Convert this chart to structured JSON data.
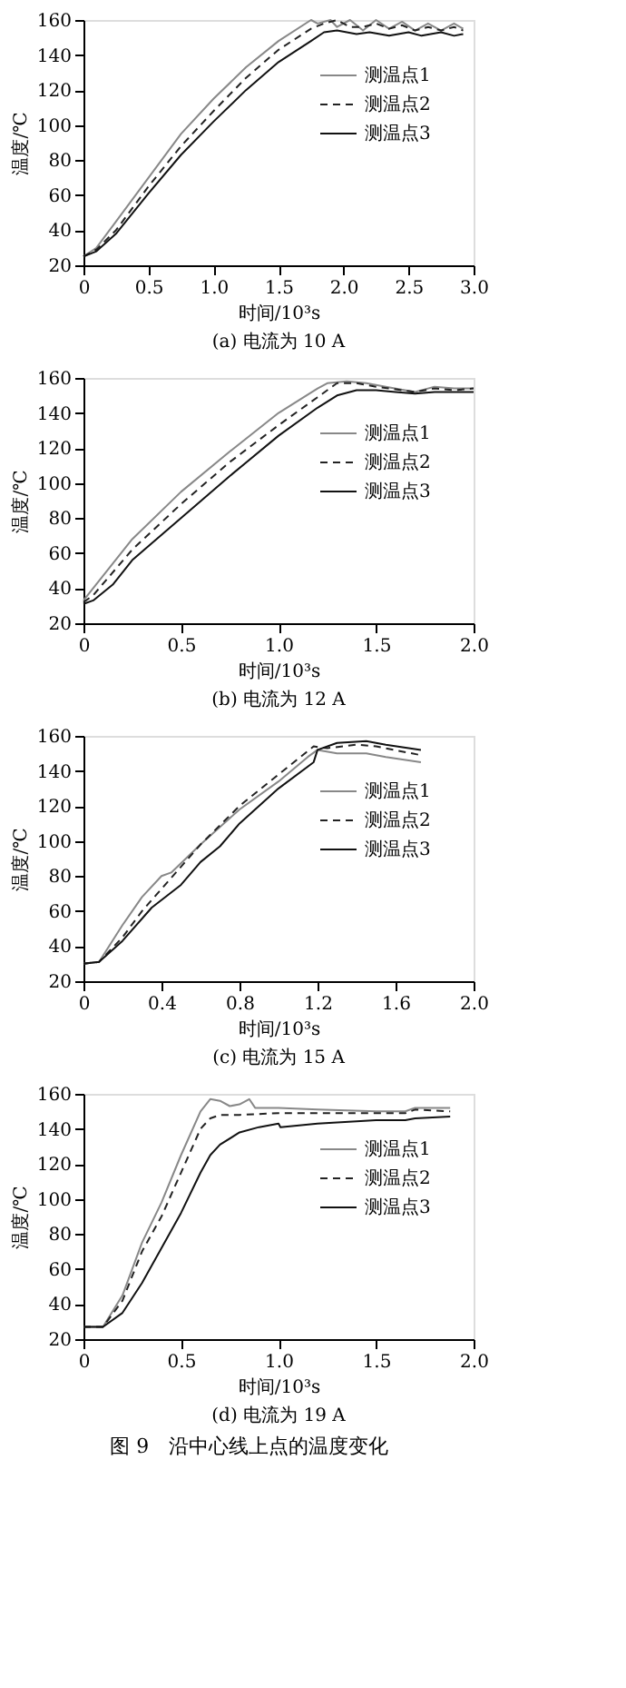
{
  "chart_data": [
    {
      "type": "line",
      "title": "(a) 电流为 10 A",
      "xlabel": "时间/10³s",
      "ylabel": "温度/℃",
      "xlim": [
        0,
        3
      ],
      "xticks": [
        0,
        0.5,
        {
          "value": 1,
          "label": "1.0"
        },
        1.5,
        {
          "value": 2,
          "label": "2.0"
        },
        2.5,
        {
          "value": 3,
          "label": "3.0"
        }
      ],
      "ylim": [
        20,
        160
      ],
      "yticks": [
        20,
        40,
        60,
        80,
        100,
        120,
        140,
        160
      ],
      "grid": false,
      "legend": "top right",
      "series": [
        {
          "name": "测温点1",
          "color": "#888888",
          "line_style": "solid",
          "x": [
            0,
            0.1,
            0.25,
            0.5,
            0.75,
            1.0,
            1.25,
            1.5,
            1.75,
            1.8,
            1.9,
            1.95,
            2.05,
            2.15,
            2.25,
            2.35,
            2.45,
            2.55,
            2.65,
            2.75,
            2.85,
            2.92
          ],
          "values": [
            25,
            30,
            45,
            70,
            95,
            115,
            133,
            148,
            160,
            158,
            160,
            156,
            160,
            154,
            160,
            155,
            159,
            154,
            158,
            154,
            158,
            155
          ]
        },
        {
          "name": "测温点2",
          "color": "#222222",
          "line_style": "dashed",
          "x": [
            0,
            0.1,
            0.25,
            0.5,
            0.75,
            1.0,
            1.25,
            1.5,
            1.75,
            1.85,
            1.95,
            2.05,
            2.15,
            2.25,
            2.35,
            2.45,
            2.55,
            2.65,
            2.75,
            2.85,
            2.92
          ],
          "values": [
            25,
            29,
            40,
            65,
            88,
            108,
            127,
            143,
            155,
            158,
            160,
            156,
            156,
            158,
            155,
            157,
            154,
            156,
            154,
            156,
            154
          ]
        },
        {
          "name": "测温点3",
          "color": "#111111",
          "line_style": "solid",
          "x": [
            0,
            0.1,
            0.25,
            0.5,
            0.75,
            1.0,
            1.25,
            1.5,
            1.75,
            1.85,
            1.95,
            2.1,
            2.2,
            2.35,
            2.5,
            2.6,
            2.75,
            2.85,
            2.92
          ],
          "values": [
            25,
            28,
            38,
            61,
            83,
            102,
            120,
            136,
            148,
            153,
            154,
            152,
            153,
            151,
            153,
            151,
            153,
            151,
            152
          ]
        }
      ]
    },
    {
      "type": "line",
      "title": "(b) 电流为 12 A",
      "xlabel": "时间/10³s",
      "ylabel": "温度/℃",
      "xlim": [
        0,
        2
      ],
      "xticks": [
        0,
        0.5,
        {
          "value": 1,
          "label": "1.0"
        },
        1.5,
        {
          "value": 2,
          "label": "2.0"
        }
      ],
      "ylim": [
        20,
        160
      ],
      "yticks": [
        20,
        40,
        60,
        80,
        100,
        120,
        140,
        160
      ],
      "grid": false,
      "legend": "top right",
      "series": [
        {
          "name": "测温点1",
          "color": "#888888",
          "line_style": "solid",
          "x": [
            0,
            0.05,
            0.25,
            0.5,
            0.75,
            1.0,
            1.2,
            1.25,
            1.35,
            1.45,
            1.55,
            1.7,
            1.8,
            1.9,
            2.0
          ],
          "values": [
            33,
            40,
            68,
            95,
            118,
            140,
            154,
            157,
            158,
            157,
            155,
            152,
            155,
            154,
            154
          ]
        },
        {
          "name": "测温点2",
          "color": "#222222",
          "line_style": "dashed",
          "x": [
            0,
            0.05,
            0.25,
            0.5,
            0.75,
            1.0,
            1.2,
            1.3,
            1.4,
            1.5,
            1.7,
            1.8,
            1.9,
            2.0
          ],
          "values": [
            32,
            36,
            62,
            88,
            112,
            133,
            149,
            157,
            157,
            155,
            152,
            154,
            153,
            154
          ]
        },
        {
          "name": "测温点3",
          "color": "#111111",
          "line_style": "solid",
          "x": [
            0,
            0.05,
            0.15,
            0.25,
            0.5,
            0.75,
            1.0,
            1.2,
            1.3,
            1.4,
            1.5,
            1.6,
            1.7,
            1.8,
            2.0
          ],
          "values": [
            31,
            33,
            42,
            56,
            80,
            104,
            127,
            143,
            150,
            153,
            153,
            152,
            151,
            152,
            152
          ]
        }
      ]
    },
    {
      "type": "line",
      "title": "(c) 电流为 15 A",
      "xlabel": "时间/10³s",
      "ylabel": "温度/℃",
      "xlim": [
        0,
        2
      ],
      "xticks": [
        0,
        0.4,
        0.8,
        1.2,
        1.6,
        {
          "value": 2,
          "label": "2.0"
        }
      ],
      "ylim": [
        20,
        160
      ],
      "yticks": [
        20,
        40,
        60,
        80,
        100,
        120,
        140,
        160
      ],
      "grid": false,
      "legend": "top right",
      "series": [
        {
          "name": "测温点1",
          "color": "#888888",
          "line_style": "solid",
          "x": [
            0,
            0.08,
            0.2,
            0.3,
            0.4,
            0.45,
            0.6,
            0.8,
            1.0,
            1.15,
            1.2,
            1.3,
            1.45,
            1.55,
            1.73
          ],
          "values": [
            30,
            31,
            52,
            68,
            80,
            82,
            98,
            118,
            134,
            148,
            152,
            150,
            150,
            148,
            145
          ]
        },
        {
          "name": "测温点2",
          "color": "#222222",
          "line_style": "dashed",
          "x": [
            0,
            0.08,
            0.2,
            0.3,
            0.45,
            0.6,
            0.8,
            1.0,
            1.18,
            1.25,
            1.4,
            1.5,
            1.73
          ],
          "values": [
            30,
            31,
            45,
            60,
            79,
            98,
            120,
            138,
            154,
            153,
            155,
            154,
            149
          ]
        },
        {
          "name": "测温点3",
          "color": "#111111",
          "line_style": "solid",
          "x": [
            0,
            0.08,
            0.2,
            0.35,
            0.5,
            0.6,
            0.7,
            0.8,
            1.0,
            1.18,
            1.2,
            1.3,
            1.45,
            1.55,
            1.73
          ],
          "values": [
            30,
            31,
            43,
            62,
            75,
            88,
            97,
            110,
            130,
            145,
            152,
            156,
            157,
            155,
            152
          ]
        }
      ]
    },
    {
      "type": "line",
      "title": "(d) 电流为 19 A",
      "xlabel": "时间/10³s",
      "ylabel": "温度/℃",
      "xlim": [
        0,
        2
      ],
      "xticks": [
        0,
        0.5,
        {
          "value": 1,
          "label": "1.0"
        },
        1.5,
        {
          "value": 2,
          "label": "2.0"
        }
      ],
      "ylim": [
        20,
        160
      ],
      "yticks": [
        20,
        40,
        60,
        80,
        100,
        120,
        140,
        160
      ],
      "grid": false,
      "legend": "top right",
      "annotations": [
        "图 9　沿中心线上点的温度变化"
      ],
      "series": [
        {
          "name": "测温点1",
          "color": "#888888",
          "line_style": "solid",
          "x": [
            0,
            0.1,
            0.2,
            0.3,
            0.4,
            0.5,
            0.6,
            0.65,
            0.7,
            0.75,
            0.8,
            0.85,
            0.88,
            1.0,
            1.2,
            1.5,
            1.65,
            1.7,
            1.88
          ],
          "values": [
            27,
            27,
            45,
            75,
            98,
            125,
            150,
            157,
            156,
            153,
            154,
            157,
            152,
            152,
            151,
            150,
            150,
            152,
            152
          ]
        },
        {
          "name": "测温点2",
          "color": "#222222",
          "line_style": "dashed",
          "x": [
            0,
            0.1,
            0.2,
            0.3,
            0.4,
            0.5,
            0.6,
            0.65,
            0.7,
            0.8,
            1.0,
            1.5,
            1.65,
            1.7,
            1.88
          ],
          "values": [
            27,
            27,
            42,
            70,
            90,
            115,
            140,
            146,
            148,
            148,
            149,
            149,
            149,
            151,
            150
          ]
        },
        {
          "name": "测温点3",
          "color": "#111111",
          "line_style": "solid",
          "x": [
            0,
            0.1,
            0.2,
            0.3,
            0.4,
            0.5,
            0.6,
            0.65,
            0.7,
            0.8,
            0.9,
            1.0,
            1.01,
            1.2,
            1.5,
            1.65,
            1.7,
            1.88
          ],
          "values": [
            27,
            27,
            35,
            52,
            72,
            92,
            115,
            125,
            131,
            138,
            141,
            143,
            141,
            143,
            145,
            145,
            146,
            147
          ]
        }
      ]
    }
  ]
}
